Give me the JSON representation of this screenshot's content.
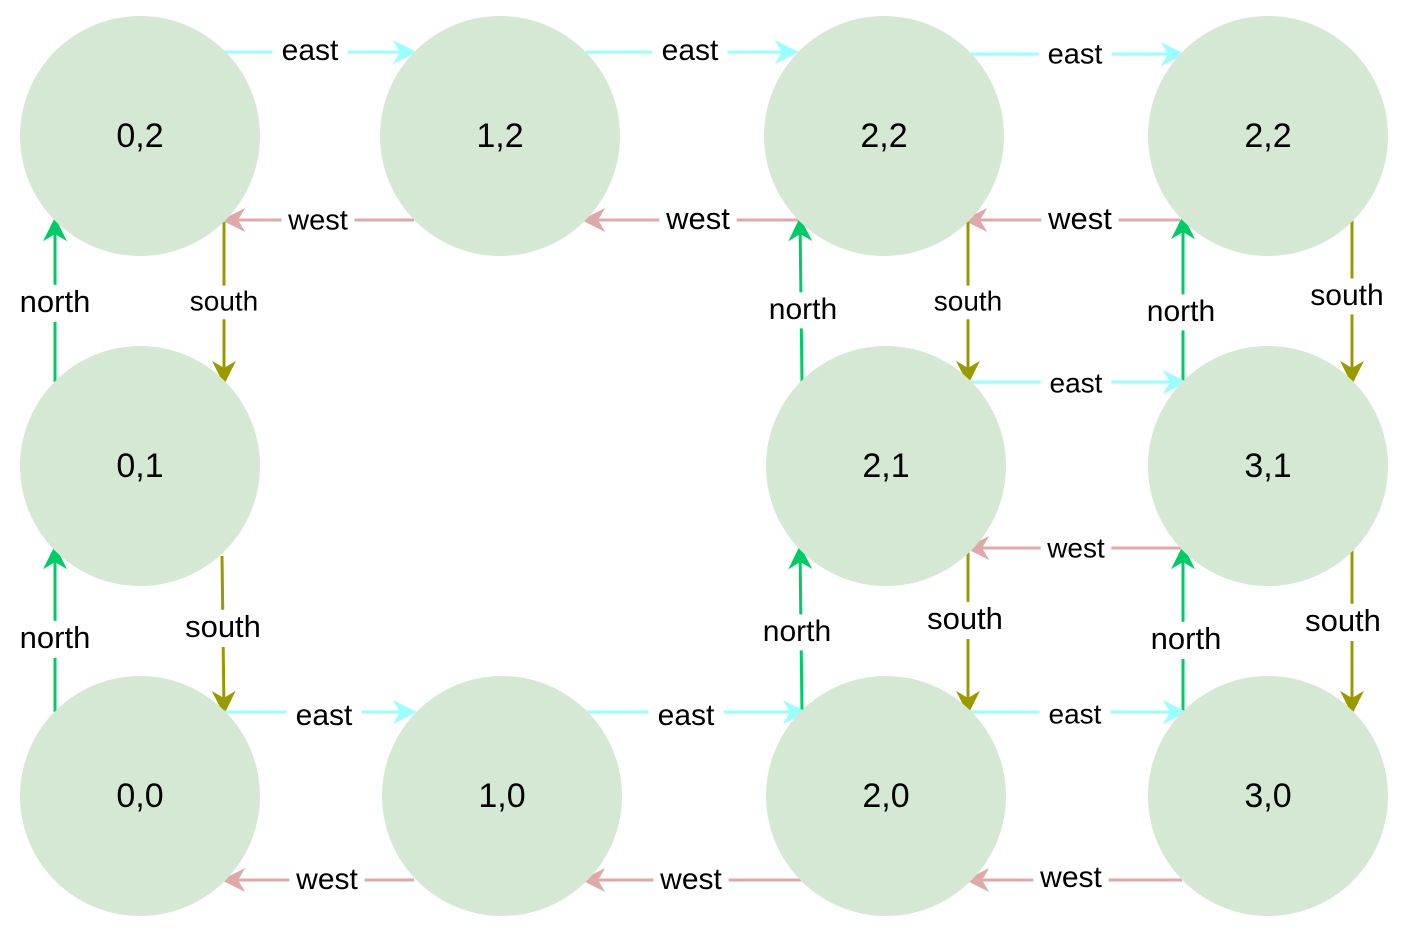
{
  "colors": {
    "background": "#ffffff",
    "node_fill": "#d5e8d4",
    "east": "#99ffff",
    "west": "#e0a8a8",
    "north": "#00cc66",
    "south": "#999900"
  },
  "nodes": [
    {
      "id": "n02",
      "label": "0,2"
    },
    {
      "id": "n12",
      "label": "1,2"
    },
    {
      "id": "n22a",
      "label": "2,2"
    },
    {
      "id": "n22b",
      "label": "2,2"
    },
    {
      "id": "n01",
      "label": "0,1"
    },
    {
      "id": "n21",
      "label": "2,1"
    },
    {
      "id": "n31",
      "label": "3,1"
    },
    {
      "id": "n00",
      "label": "0,0"
    },
    {
      "id": "n10",
      "label": "1,0"
    },
    {
      "id": "n20",
      "label": "2,0"
    },
    {
      "id": "n30",
      "label": "3,0"
    }
  ],
  "edges": [
    {
      "from": "n02",
      "to": "n12",
      "label": "east",
      "dir": "east"
    },
    {
      "from": "n12",
      "to": "n22a",
      "label": "east",
      "dir": "east"
    },
    {
      "from": "n22a",
      "to": "n22b",
      "label": "east",
      "dir": "east"
    },
    {
      "from": "n12",
      "to": "n02",
      "label": "west",
      "dir": "west"
    },
    {
      "from": "n22a",
      "to": "n12",
      "label": "west",
      "dir": "west"
    },
    {
      "from": "n22b",
      "to": "n22a",
      "label": "west",
      "dir": "west"
    },
    {
      "from": "n01",
      "to": "n02",
      "label": "north",
      "dir": "north"
    },
    {
      "from": "n02",
      "to": "n01",
      "label": "south",
      "dir": "south"
    },
    {
      "from": "n21",
      "to": "n22a",
      "label": "north",
      "dir": "north"
    },
    {
      "from": "n22a",
      "to": "n21",
      "label": "south",
      "dir": "south"
    },
    {
      "from": "n31",
      "to": "n22b",
      "label": "north",
      "dir": "north"
    },
    {
      "from": "n22b",
      "to": "n31",
      "label": "south",
      "dir": "south"
    },
    {
      "from": "n21",
      "to": "n31",
      "label": "east",
      "dir": "east"
    },
    {
      "from": "n31",
      "to": "n21",
      "label": "west",
      "dir": "west"
    },
    {
      "from": "n00",
      "to": "n01",
      "label": "north",
      "dir": "north"
    },
    {
      "from": "n01",
      "to": "n00",
      "label": "south",
      "dir": "south"
    },
    {
      "from": "n20",
      "to": "n21",
      "label": "north",
      "dir": "north"
    },
    {
      "from": "n21",
      "to": "n20",
      "label": "south",
      "dir": "south"
    },
    {
      "from": "n30",
      "to": "n31",
      "label": "north",
      "dir": "north"
    },
    {
      "from": "n31",
      "to": "n30",
      "label": "south",
      "dir": "south"
    },
    {
      "from": "n00",
      "to": "n10",
      "label": "east",
      "dir": "east"
    },
    {
      "from": "n10",
      "to": "n20",
      "label": "east",
      "dir": "east"
    },
    {
      "from": "n20",
      "to": "n30",
      "label": "east",
      "dir": "east"
    },
    {
      "from": "n10",
      "to": "n00",
      "label": "west",
      "dir": "west"
    },
    {
      "from": "n20",
      "to": "n10",
      "label": "west",
      "dir": "west"
    },
    {
      "from": "n30",
      "to": "n20",
      "label": "west",
      "dir": "west"
    }
  ]
}
